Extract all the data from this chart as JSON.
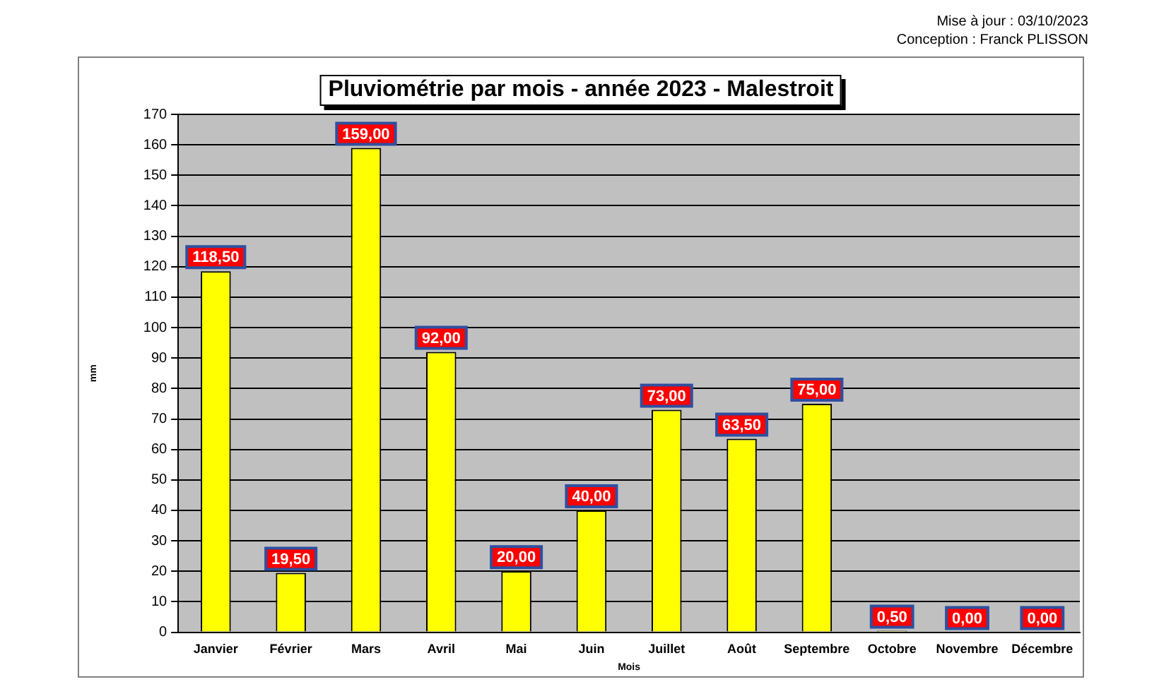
{
  "chart_data": {
    "type": "bar",
    "title": "Pluviométrie par mois - année 2023 - Malestroit",
    "xlabel": "Mois",
    "ylabel": "mm",
    "annotations": [
      "Mise à jour : 03/10/2023",
      "Conception : Franck PLISSON"
    ],
    "categories": [
      "Janvier",
      "Février",
      "Mars",
      "Avril",
      "Mai",
      "Juin",
      "Juillet",
      "Août",
      "Septembre",
      "Octobre",
      "Novembre",
      "Décembre"
    ],
    "values": [
      118.5,
      19.5,
      159,
      92,
      20,
      40,
      73,
      63.5,
      75,
      0.5,
      0,
      0
    ],
    "value_labels": [
      "118,50",
      "19,50",
      "159,00",
      "92,00",
      "20,00",
      "40,00",
      "73,00",
      "63,50",
      "75,00",
      "0,50",
      "0,00",
      "0,00"
    ],
    "color": "#ffff00",
    "ylim": [
      0,
      170
    ],
    "yticks": [
      0,
      10,
      20,
      30,
      40,
      50,
      60,
      70,
      80,
      90,
      100,
      110,
      120,
      130,
      140,
      150,
      160,
      170
    ],
    "grid": "y",
    "legend": false
  }
}
